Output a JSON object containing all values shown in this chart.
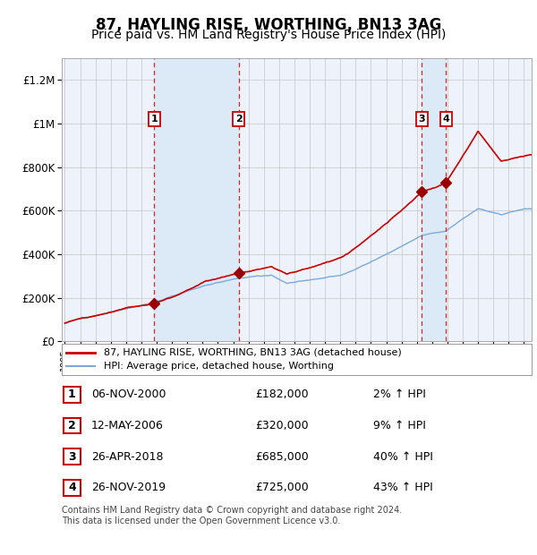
{
  "title": "87, HAYLING RISE, WORTHING, BN13 3AG",
  "subtitle": "Price paid vs. HM Land Registry's House Price Index (HPI)",
  "title_fontsize": 12,
  "subtitle_fontsize": 10,
  "background_color": "#ffffff",
  "plot_bg_color": "#eef3fb",
  "grid_color": "#cccccc",
  "transactions": [
    {
      "num": 1,
      "date": "06-NOV-2000",
      "price": 182000,
      "hpi_diff": "2% ↑ HPI",
      "year_x": 2000.85
    },
    {
      "num": 2,
      "date": "12-MAY-2006",
      "price": 320000,
      "hpi_diff": "9% ↑ HPI",
      "year_x": 2006.36
    },
    {
      "num": 3,
      "date": "26-APR-2018",
      "price": 685000,
      "hpi_diff": "40% ↑ HPI",
      "year_x": 2018.32
    },
    {
      "num": 4,
      "date": "26-NOV-2019",
      "price": 725000,
      "hpi_diff": "43% ↑ HPI",
      "year_x": 2019.9
    }
  ],
  "vline_color": "#dd2222",
  "shade_color": "#dce9f7",
  "house_line_color": "#cc0000",
  "hpi_line_color": "#7aaadd",
  "legend_labels": [
    "87, HAYLING RISE, WORTHING, BN13 3AG (detached house)",
    "HPI: Average price, detached house, Worthing"
  ],
  "footer_text": "Contains HM Land Registry data © Crown copyright and database right 2024.\nThis data is licensed under the Open Government Licence v3.0.",
  "ylim": [
    0,
    1300000
  ],
  "yticks": [
    0,
    200000,
    400000,
    600000,
    800000,
    1000000,
    1200000
  ],
  "ytick_labels": [
    "£0",
    "£200K",
    "£400K",
    "£600K",
    "£800K",
    "£1M",
    "£1.2M"
  ],
  "xmin": 1994.8,
  "xmax": 2025.5
}
